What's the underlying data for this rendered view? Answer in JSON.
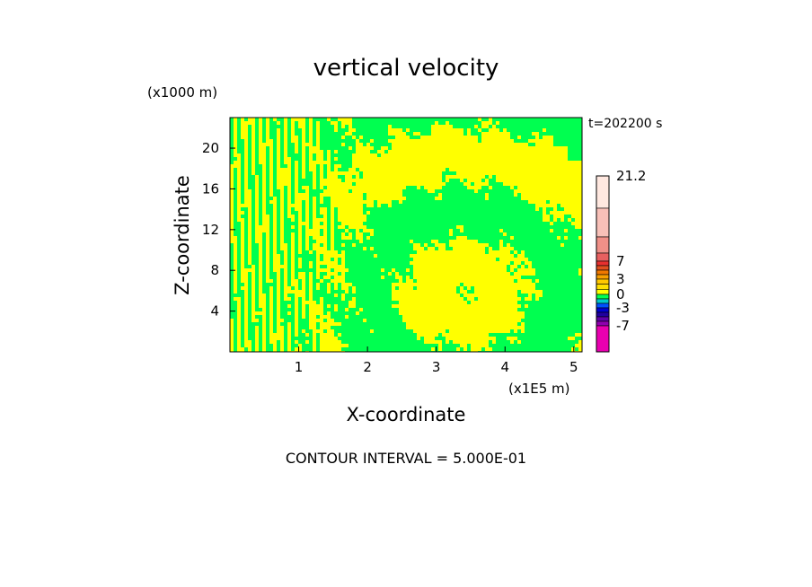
{
  "chart_data": {
    "type": "heatmap",
    "title": "vertical velocity",
    "time_label": "t=202200 s",
    "x_unit_label": "(x1E5 m)",
    "y_unit_label": "(x1000 m)",
    "xlabel": "X-coordinate",
    "ylabel": "Z-coordinate",
    "xlim": [
      0,
      5.12
    ],
    "ylim": [
      0,
      23
    ],
    "x_ticks": [
      1,
      2,
      3,
      4,
      5
    ],
    "y_ticks": [
      4,
      8,
      12,
      16,
      20
    ],
    "field_colors": {
      "positive": "#ffff00",
      "negative": "#00ff50"
    },
    "colorbar": {
      "labels": [
        {
          "value": 21.2,
          "text": "21.2"
        },
        {
          "value": 7,
          "text": "7"
        },
        {
          "value": 3,
          "text": "3"
        },
        {
          "value": 0,
          "text": "0"
        },
        {
          "value": -3,
          "text": "-3"
        },
        {
          "value": -7,
          "text": "-7"
        }
      ],
      "bands": [
        {
          "from": 14,
          "to": 21.2,
          "color": "#ffe8e0"
        },
        {
          "from": 10,
          "to": 14,
          "color": "#f8c0b8"
        },
        {
          "from": 8,
          "to": 10,
          "color": "#f09088"
        },
        {
          "from": 7,
          "to": 8,
          "color": "#e86060"
        },
        {
          "from": 6,
          "to": 7,
          "color": "#e83030"
        },
        {
          "from": 5,
          "to": 6,
          "color": "#e05020"
        },
        {
          "from": 4,
          "to": 5,
          "color": "#f07800"
        },
        {
          "from": 3,
          "to": 4,
          "color": "#f8a000"
        },
        {
          "from": 2,
          "to": 3,
          "color": "#ffc800"
        },
        {
          "from": 1,
          "to": 2,
          "color": "#ffe000"
        },
        {
          "from": 0,
          "to": 1,
          "color": "#ffff00"
        },
        {
          "from": -1,
          "to": 0,
          "color": "#00ff50"
        },
        {
          "from": -2,
          "to": -1,
          "color": "#00c8c8"
        },
        {
          "from": -3,
          "to": -2,
          "color": "#0050ff"
        },
        {
          "from": -4,
          "to": -3,
          "color": "#0000d0"
        },
        {
          "from": -5,
          "to": -4,
          "color": "#2000a0"
        },
        {
          "from": -6,
          "to": -5,
          "color": "#6000a8"
        },
        {
          "from": -7,
          "to": -6,
          "color": "#9000b0"
        },
        {
          "from": -10,
          "to": -7,
          "color": "#e800b0"
        }
      ]
    }
  },
  "footer": {
    "contour_interval": "CONTOUR INTERVAL = 5.000E-01"
  }
}
